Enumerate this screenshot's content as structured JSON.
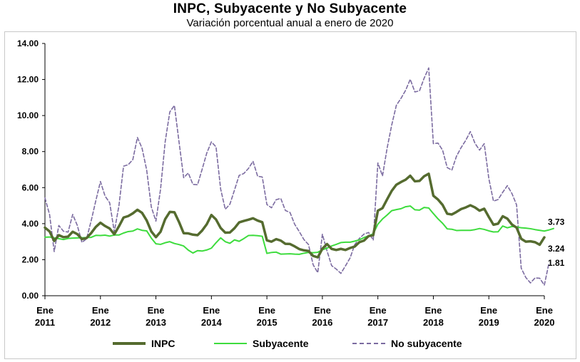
{
  "chart_data": {
    "type": "line",
    "title": "INPC, Subyacente y No Subyacente",
    "subtitle": "Variación porcentual anual a enero de 2020",
    "ylim": [
      0,
      14
    ],
    "yticks": [
      "0.00",
      "2.00",
      "4.00",
      "6.00",
      "8.00",
      "10.00",
      "12.00",
      "14.00"
    ],
    "yticks_values": [
      0,
      2,
      4,
      6,
      8,
      10,
      12,
      14
    ],
    "xticks": [
      {
        "line1": "Ene",
        "line2": "2011",
        "index": 0
      },
      {
        "line1": "Ene",
        "line2": "2012",
        "index": 12
      },
      {
        "line1": "Ene",
        "line2": "2013",
        "index": 24
      },
      {
        "line1": "Ene",
        "line2": "2014",
        "index": 36
      },
      {
        "line1": "Ene",
        "line2": "2015",
        "index": 48
      },
      {
        "line1": "Ene",
        "line2": "2016",
        "index": 60
      },
      {
        "line1": "Ene",
        "line2": "2017",
        "index": 72
      },
      {
        "line1": "Ene",
        "line2": "2018",
        "index": 84
      },
      {
        "line1": "Ene",
        "line2": "2019",
        "index": 96
      },
      {
        "line1": "Ene",
        "line2": "2020",
        "index": 108
      }
    ],
    "x_start": "2011-01",
    "frequency": "monthly",
    "grid": false,
    "legend_position": "bottom",
    "series": [
      {
        "name": "INPC",
        "color": "#556b2f",
        "style": "solid-thick",
        "end_label": "3.24",
        "values": [
          3.78,
          3.57,
          3.04,
          3.36,
          3.25,
          3.28,
          3.55,
          3.42,
          3.14,
          3.2,
          3.48,
          3.82,
          4.05,
          3.87,
          3.73,
          3.41,
          3.85,
          4.34,
          4.42,
          4.57,
          4.77,
          4.6,
          4.18,
          3.57,
          3.25,
          3.55,
          4.25,
          4.65,
          4.63,
          4.09,
          3.47,
          3.46,
          3.39,
          3.36,
          3.62,
          3.97,
          4.48,
          4.23,
          3.76,
          3.5,
          3.51,
          3.75,
          4.07,
          4.15,
          4.22,
          4.3,
          4.17,
          4.08,
          3.07,
          3.0,
          3.14,
          3.06,
          2.88,
          2.87,
          2.74,
          2.59,
          2.52,
          2.48,
          2.21,
          2.13,
          2.61,
          2.87,
          2.6,
          2.54,
          2.6,
          2.54,
          2.65,
          2.73,
          2.97,
          3.06,
          3.31,
          3.36,
          4.72,
          4.86,
          5.35,
          5.82,
          6.16,
          6.31,
          6.44,
          6.66,
          6.35,
          6.37,
          6.63,
          6.77,
          5.55,
          5.34,
          5.04,
          4.55,
          4.51,
          4.65,
          4.81,
          4.9,
          5.02,
          4.9,
          4.72,
          4.83,
          4.37,
          3.94,
          4.0,
          4.41,
          4.28,
          3.95,
          3.78,
          3.16,
          3.0,
          3.02,
          2.97,
          2.83,
          3.24
        ]
      },
      {
        "name": "Subyacente",
        "color": "#3ddc3d",
        "style": "solid",
        "end_label": "3.73",
        "values": [
          3.25,
          3.26,
          3.21,
          3.17,
          3.12,
          3.18,
          3.2,
          3.21,
          3.22,
          3.23,
          3.24,
          3.35,
          3.34,
          3.36,
          3.31,
          3.37,
          3.37,
          3.48,
          3.56,
          3.59,
          3.71,
          3.63,
          3.6,
          3.2,
          2.88,
          2.85,
          2.94,
          3.0,
          2.9,
          2.84,
          2.76,
          2.53,
          2.37,
          2.5,
          2.48,
          2.54,
          2.64,
          2.94,
          3.21,
          3.0,
          2.91,
          3.1,
          3.02,
          3.17,
          3.34,
          3.35,
          3.33,
          3.3,
          2.35,
          2.4,
          2.42,
          2.31,
          2.32,
          2.33,
          2.31,
          2.3,
          2.36,
          2.4,
          2.39,
          2.41,
          2.55,
          2.64,
          2.76,
          2.85,
          2.95,
          2.97,
          2.97,
          3.03,
          3.1,
          3.23,
          3.32,
          3.44,
          3.97,
          4.26,
          4.48,
          4.72,
          4.78,
          4.83,
          4.94,
          4.98,
          4.77,
          4.75,
          4.9,
          4.87,
          4.56,
          4.27,
          4.02,
          3.71,
          3.69,
          3.62,
          3.63,
          3.63,
          3.63,
          3.67,
          3.73,
          3.68,
          3.6,
          3.54,
          3.55,
          3.87,
          3.77,
          3.84,
          3.82,
          3.77,
          3.75,
          3.72,
          3.67,
          3.63,
          3.59,
          3.65,
          3.73
        ]
      },
      {
        "name": "No subyacente",
        "color": "#7b6ba0",
        "style": "dashed",
        "end_label": "1.81",
        "values": [
          5.43,
          4.51,
          2.45,
          3.9,
          3.58,
          3.53,
          4.51,
          3.9,
          2.96,
          3.16,
          4.16,
          5.27,
          6.34,
          5.53,
          5.16,
          3.55,
          4.99,
          7.19,
          7.27,
          7.55,
          8.78,
          8.19,
          6.98,
          4.93,
          4.14,
          5.91,
          8.54,
          10.2,
          10.56,
          8.53,
          6.55,
          6.81,
          6.18,
          6.16,
          7.02,
          7.92,
          8.54,
          8.26,
          5.92,
          4.8,
          5.08,
          5.87,
          6.68,
          6.78,
          7.06,
          7.46,
          6.63,
          6.59,
          5.06,
          4.88,
          5.33,
          5.4,
          4.73,
          4.62,
          3.97,
          3.56,
          3.12,
          2.84,
          1.72,
          1.28,
          3.41,
          2.49,
          1.67,
          1.48,
          1.24,
          1.66,
          2.1,
          2.84,
          3.18,
          3.42,
          3.51,
          3.09,
          7.37,
          6.65,
          8.19,
          9.48,
          10.57,
          10.95,
          11.4,
          12.01,
          11.31,
          11.37,
          12.07,
          12.64,
          8.44,
          8.47,
          8.08,
          7.11,
          6.97,
          7.74,
          8.22,
          8.62,
          9.11,
          8.46,
          8.08,
          8.44,
          6.5,
          5.25,
          5.34,
          5.74,
          6.11,
          5.67,
          5.04,
          1.53,
          1.01,
          0.71,
          0.99,
          0.97,
          0.59,
          1.81
        ]
      }
    ]
  }
}
